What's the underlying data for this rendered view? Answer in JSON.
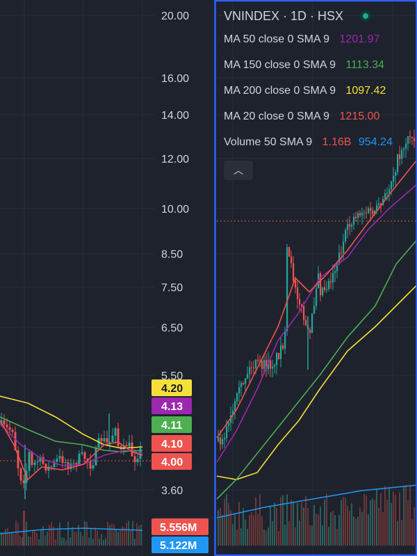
{
  "left_axis": {
    "ticks": [
      "20.00",
      "16.00",
      "14.00",
      "12.00",
      "10.00",
      "8.50",
      "7.50",
      "6.50",
      "5.50",
      "3.60"
    ]
  },
  "price_badges": [
    {
      "text": "4.20",
      "color": "#f5e03a",
      "text_color": "#131722"
    },
    {
      "text": "4.13",
      "color": "#9c27b0",
      "text_color": "#ffffff"
    },
    {
      "text": "4.11",
      "color": "#4caf50",
      "text_color": "#ffffff"
    },
    {
      "text": "4.10",
      "color": "#ef5350",
      "text_color": "#ffffff"
    },
    {
      "text": "4.00",
      "color": "#ef5350",
      "text_color": "#ffffff"
    }
  ],
  "volume_badges": [
    {
      "text": "5.556M",
      "color": "#ef5350",
      "text_color": "#ffffff"
    },
    {
      "text": "5.122M",
      "color": "#2196f3",
      "text_color": "#ffffff"
    }
  ],
  "legend": {
    "title": "VNINDEX · 1D · HSX",
    "rows": [
      {
        "name": "MA 50 close 0 SMA 9",
        "value": "1201.97",
        "color": "#9c27b0"
      },
      {
        "name": "MA 150 close 0 SMA 9",
        "value": "1113.34",
        "color": "#4caf50"
      },
      {
        "name": "MA 200 close 0 SMA 9",
        "value": "1097.42",
        "color": "#f5e03a"
      },
      {
        "name": "MA 20 close 0 SMA 9",
        "value": "1215.00",
        "color": "#ef5350"
      }
    ],
    "volume": {
      "name": "Volume 50 SMA 9",
      "value": "1.16B",
      "value_color": "#ef5350",
      "sma": "954.24",
      "sma_color": "#2196f3"
    },
    "collapse_icon": "chevron-up-icon"
  },
  "colors": {
    "background": "#1e222d",
    "grid": "#2a2e39",
    "up": "#26a69a",
    "down": "#ef5350",
    "ma50": "#9c27b0",
    "ma150": "#4caf50",
    "ma200": "#f5e03a",
    "ma20": "#ef5350",
    "volume_sma": "#2196f3",
    "selection_border": "#2962ff"
  },
  "chart_data": [
    {
      "type": "line",
      "title": "",
      "scale": "log",
      "price_axis_ticks": [
        20.0,
        16.0,
        14.0,
        12.0,
        10.0,
        8.5,
        7.5,
        6.5,
        5.5,
        3.6
      ],
      "last_close": 4.0,
      "ma_values": {
        "MA 200": 4.2,
        "MA 50": 4.13,
        "MA 150": 4.11,
        "MA 20": 4.1
      },
      "volume_last": "5.556M",
      "volume_sma": "5.122M"
    },
    {
      "type": "line",
      "title": "VNINDEX · 1D · HSX",
      "series": [
        {
          "name": "MA 50 close 0 SMA 9",
          "last": 1201.97
        },
        {
          "name": "MA 150 close 0 SMA 9",
          "last": 1113.34
        },
        {
          "name": "MA 200 close 0 SMA 9",
          "last": 1097.42
        },
        {
          "name": "MA 20 close 0 SMA 9",
          "last": 1215.0
        }
      ],
      "volume": {
        "name": "Volume 50 SMA 9",
        "last": "1.16B",
        "sma": "954.24"
      }
    }
  ]
}
